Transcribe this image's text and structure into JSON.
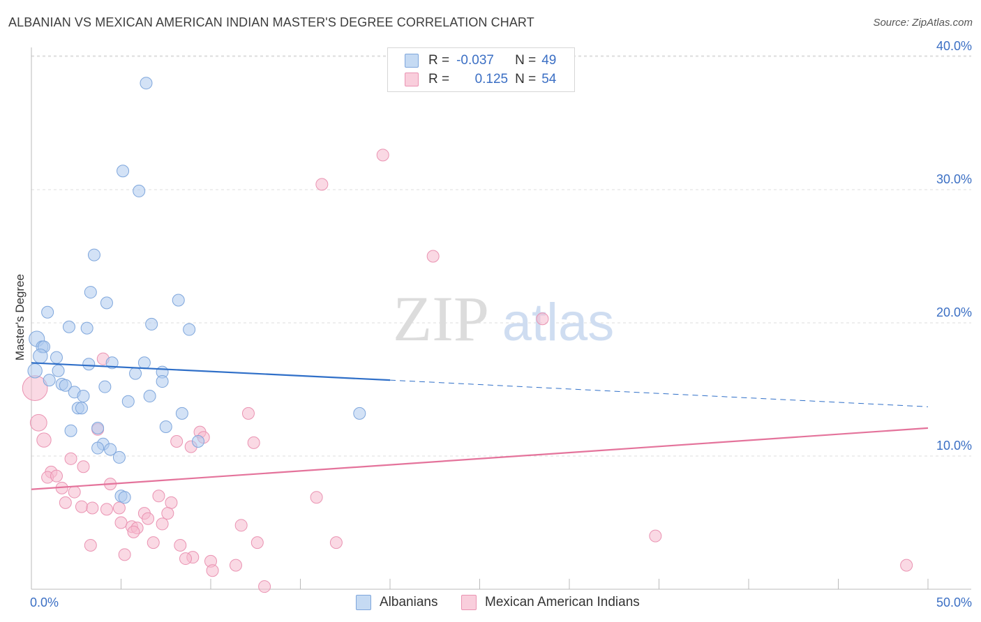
{
  "title": "ALBANIAN VS MEXICAN AMERICAN INDIAN MASTER'S DEGREE CORRELATION CHART",
  "source": "Source: ZipAtlas.com",
  "watermark": {
    "zip": "ZIP",
    "atlas": "atlas"
  },
  "legend": {
    "rows": [
      {
        "r_label": "R =",
        "r_value": "-0.037",
        "n_label": "N =",
        "n_value": "49"
      },
      {
        "r_label": "R =",
        "r_value": "0.125",
        "n_label": "N =",
        "n_value": "54"
      }
    ]
  },
  "bottom_legend": [
    "Albanians",
    "Mexican American Indians"
  ],
  "colors": {
    "blue_fill": "#aecbef",
    "blue_stroke": "#7ea6dc",
    "blue_line": "#2f6fc8",
    "pink_fill": "#f6b9cd",
    "pink_stroke": "#ea93b2",
    "pink_line": "#e4739b",
    "axis_text": "#3b6fc4",
    "grid": "#dddddd"
  },
  "chart_data": {
    "type": "scatter",
    "title": "ALBANIAN VS MEXICAN AMERICAN INDIAN MASTER'S DEGREE CORRELATION CHART",
    "xlabel": "",
    "ylabel": "Master's Degree",
    "xlim": [
      0,
      50
    ],
    "ylim": [
      0,
      40
    ],
    "x_tick_labels": [
      "0.0%",
      "50.0%"
    ],
    "y_ticks": [
      {
        "value": 10,
        "label": "10.0%"
      },
      {
        "value": 20,
        "label": "20.0%"
      },
      {
        "value": 30,
        "label": "30.0%"
      },
      {
        "value": 40,
        "label": "40.0%"
      }
    ],
    "x_minor_ticks": [
      5,
      10,
      15,
      20,
      25,
      30,
      35,
      40,
      45,
      50
    ],
    "series": [
      {
        "name": "Albanians",
        "r": -0.037,
        "n": 49,
        "trend": {
          "x0": 0,
          "y0": 17.0,
          "x1": 20,
          "y1": 15.7,
          "dash_x1": 50,
          "dash_y1": 13.7
        },
        "points": [
          {
            "x": 6.4,
            "y": 38.0,
            "s": 1
          },
          {
            "x": 5.1,
            "y": 31.4,
            "s": 1
          },
          {
            "x": 6.0,
            "y": 29.9,
            "s": 1
          },
          {
            "x": 3.5,
            "y": 25.1,
            "s": 1
          },
          {
            "x": 8.2,
            "y": 21.7,
            "s": 1
          },
          {
            "x": 3.3,
            "y": 22.3,
            "s": 1
          },
          {
            "x": 4.2,
            "y": 21.5,
            "s": 1
          },
          {
            "x": 0.9,
            "y": 20.8,
            "s": 1
          },
          {
            "x": 2.1,
            "y": 19.7,
            "s": 1
          },
          {
            "x": 3.1,
            "y": 19.6,
            "s": 1
          },
          {
            "x": 6.7,
            "y": 19.9,
            "s": 1
          },
          {
            "x": 8.8,
            "y": 19.5,
            "s": 1
          },
          {
            "x": 0.3,
            "y": 18.8,
            "s": 1.3
          },
          {
            "x": 0.6,
            "y": 18.2,
            "s": 1
          },
          {
            "x": 0.7,
            "y": 18.2,
            "s": 1
          },
          {
            "x": 0.5,
            "y": 17.5,
            "s": 1.2
          },
          {
            "x": 1.4,
            "y": 17.4,
            "s": 1
          },
          {
            "x": 3.2,
            "y": 16.9,
            "s": 1
          },
          {
            "x": 4.5,
            "y": 17.0,
            "s": 1
          },
          {
            "x": 6.3,
            "y": 17.0,
            "s": 1
          },
          {
            "x": 0.2,
            "y": 16.4,
            "s": 1.2
          },
          {
            "x": 1.5,
            "y": 16.4,
            "s": 1
          },
          {
            "x": 7.3,
            "y": 16.3,
            "s": 1
          },
          {
            "x": 5.8,
            "y": 16.2,
            "s": 1
          },
          {
            "x": 1.0,
            "y": 15.7,
            "s": 1
          },
          {
            "x": 1.7,
            "y": 15.4,
            "s": 1
          },
          {
            "x": 1.9,
            "y": 15.3,
            "s": 1
          },
          {
            "x": 7.3,
            "y": 15.6,
            "s": 1
          },
          {
            "x": 4.1,
            "y": 15.2,
            "s": 1
          },
          {
            "x": 2.4,
            "y": 14.8,
            "s": 1
          },
          {
            "x": 2.9,
            "y": 14.5,
            "s": 1
          },
          {
            "x": 6.6,
            "y": 14.5,
            "s": 1
          },
          {
            "x": 5.4,
            "y": 14.1,
            "s": 1
          },
          {
            "x": 2.6,
            "y": 13.6,
            "s": 1
          },
          {
            "x": 2.8,
            "y": 13.6,
            "s": 1
          },
          {
            "x": 8.4,
            "y": 13.2,
            "s": 1
          },
          {
            "x": 18.3,
            "y": 13.2,
            "s": 1
          },
          {
            "x": 3.7,
            "y": 12.1,
            "s": 1
          },
          {
            "x": 7.5,
            "y": 12.2,
            "s": 1
          },
          {
            "x": 2.2,
            "y": 11.9,
            "s": 1
          },
          {
            "x": 9.3,
            "y": 11.1,
            "s": 1
          },
          {
            "x": 4.0,
            "y": 10.9,
            "s": 1
          },
          {
            "x": 3.7,
            "y": 10.6,
            "s": 1
          },
          {
            "x": 4.4,
            "y": 10.5,
            "s": 1
          },
          {
            "x": 4.9,
            "y": 9.9,
            "s": 1
          },
          {
            "x": 5.0,
            "y": 7.0,
            "s": 1
          },
          {
            "x": 5.2,
            "y": 6.9,
            "s": 1
          }
        ]
      },
      {
        "name": "Mexican American Indians",
        "r": 0.125,
        "n": 54,
        "trend": {
          "x0": 0,
          "y0": 7.5,
          "x1": 50,
          "y1": 12.1
        },
        "points": [
          {
            "x": 19.6,
            "y": 32.6,
            "s": 1
          },
          {
            "x": 16.2,
            "y": 30.4,
            "s": 1
          },
          {
            "x": 22.4,
            "y": 25.0,
            "s": 1
          },
          {
            "x": 28.5,
            "y": 20.3,
            "s": 1
          },
          {
            "x": 0.2,
            "y": 15.1,
            "s": 2.1
          },
          {
            "x": 4.0,
            "y": 17.3,
            "s": 1
          },
          {
            "x": 0.4,
            "y": 12.5,
            "s": 1.4
          },
          {
            "x": 0.7,
            "y": 11.2,
            "s": 1.2
          },
          {
            "x": 12.1,
            "y": 13.2,
            "s": 1
          },
          {
            "x": 3.7,
            "y": 12.0,
            "s": 1
          },
          {
            "x": 9.4,
            "y": 11.8,
            "s": 1
          },
          {
            "x": 9.6,
            "y": 11.4,
            "s": 1
          },
          {
            "x": 8.1,
            "y": 11.1,
            "s": 1
          },
          {
            "x": 12.4,
            "y": 11.0,
            "s": 1
          },
          {
            "x": 8.9,
            "y": 10.7,
            "s": 1
          },
          {
            "x": 2.2,
            "y": 9.8,
            "s": 1
          },
          {
            "x": 2.9,
            "y": 9.2,
            "s": 1
          },
          {
            "x": 1.1,
            "y": 8.8,
            "s": 1
          },
          {
            "x": 0.9,
            "y": 8.4,
            "s": 1
          },
          {
            "x": 1.4,
            "y": 8.5,
            "s": 1
          },
          {
            "x": 4.4,
            "y": 7.9,
            "s": 1
          },
          {
            "x": 1.7,
            "y": 7.6,
            "s": 1
          },
          {
            "x": 2.4,
            "y": 7.3,
            "s": 1
          },
          {
            "x": 7.1,
            "y": 7.0,
            "s": 1
          },
          {
            "x": 15.9,
            "y": 6.9,
            "s": 1
          },
          {
            "x": 1.9,
            "y": 6.5,
            "s": 1
          },
          {
            "x": 7.8,
            "y": 6.5,
            "s": 1
          },
          {
            "x": 2.8,
            "y": 6.2,
            "s": 1
          },
          {
            "x": 3.4,
            "y": 6.1,
            "s": 1
          },
          {
            "x": 4.2,
            "y": 6.0,
            "s": 1
          },
          {
            "x": 4.9,
            "y": 6.1,
            "s": 1
          },
          {
            "x": 6.3,
            "y": 5.7,
            "s": 1
          },
          {
            "x": 7.6,
            "y": 5.7,
            "s": 1
          },
          {
            "x": 6.5,
            "y": 5.3,
            "s": 1
          },
          {
            "x": 5.0,
            "y": 5.0,
            "s": 1
          },
          {
            "x": 7.3,
            "y": 4.9,
            "s": 1
          },
          {
            "x": 11.7,
            "y": 4.8,
            "s": 1
          },
          {
            "x": 5.6,
            "y": 4.7,
            "s": 1
          },
          {
            "x": 5.9,
            "y": 4.6,
            "s": 1
          },
          {
            "x": 5.7,
            "y": 4.3,
            "s": 1
          },
          {
            "x": 34.8,
            "y": 4.0,
            "s": 1
          },
          {
            "x": 6.8,
            "y": 3.5,
            "s": 1
          },
          {
            "x": 12.6,
            "y": 3.5,
            "s": 1
          },
          {
            "x": 17.0,
            "y": 3.5,
            "s": 1
          },
          {
            "x": 3.3,
            "y": 3.3,
            "s": 1
          },
          {
            "x": 8.3,
            "y": 3.3,
            "s": 1
          },
          {
            "x": 5.2,
            "y": 2.6,
            "s": 1
          },
          {
            "x": 9.0,
            "y": 2.4,
            "s": 1
          },
          {
            "x": 8.6,
            "y": 2.3,
            "s": 1
          },
          {
            "x": 10.0,
            "y": 2.1,
            "s": 1
          },
          {
            "x": 11.4,
            "y": 1.8,
            "s": 1
          },
          {
            "x": 10.1,
            "y": 1.4,
            "s": 1
          },
          {
            "x": 48.8,
            "y": 1.8,
            "s": 1
          },
          {
            "x": 13.0,
            "y": 0.2,
            "s": 1
          }
        ]
      }
    ]
  }
}
